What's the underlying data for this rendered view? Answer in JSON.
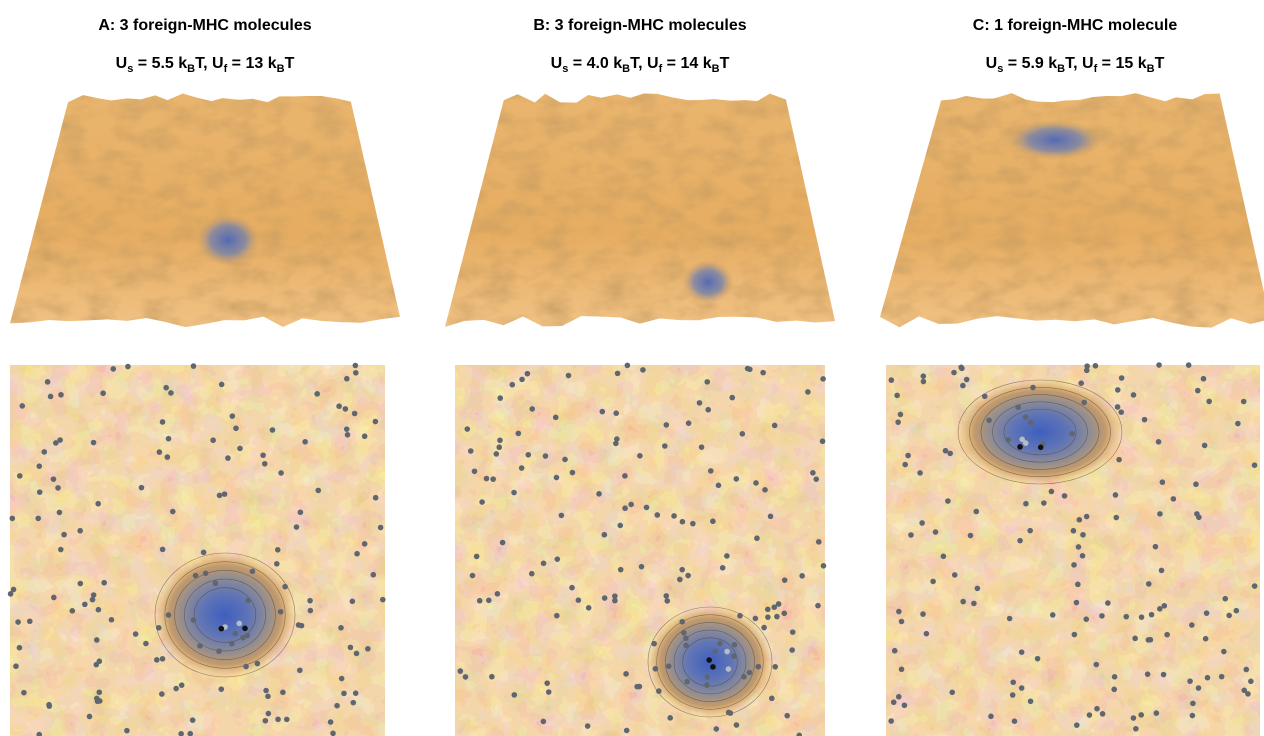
{
  "panels": [
    {
      "title": "A:  3 foreign-MHC molecules",
      "subtitle": [
        "U",
        "s",
        " = 5.5 k",
        "B",
        "T, U",
        "f",
        " = 13 k",
        "B",
        "T"
      ]
    },
    {
      "title": "B:  3 foreign-MHC molecules",
      "subtitle": [
        "U",
        "s",
        " = 4.0 k",
        "B",
        "T, U",
        "f",
        " = 14 k",
        "B",
        "T"
      ]
    },
    {
      "title": "C:  1 foreign-MHC molecule",
      "subtitle": [
        "U",
        "s",
        " = 5.9 k",
        "B",
        "T, U",
        "f",
        " = 15 k",
        "B",
        "T"
      ]
    }
  ]
}
